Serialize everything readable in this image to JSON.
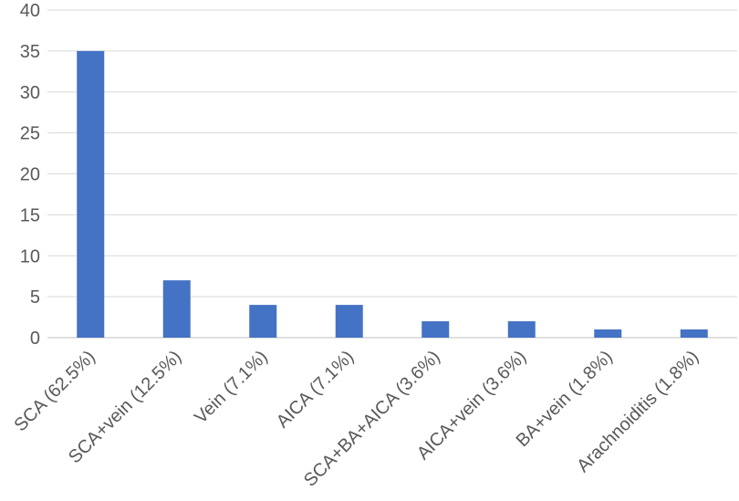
{
  "chart_data": {
    "type": "bar",
    "categories": [
      "SCA (62.5%)",
      "SCA+vein (12.5%)",
      "Vein (7.1%)",
      "AICA (7.1%)",
      "SCA+BA+AICA (3.6%)",
      "AICA+vein (3.6%)",
      "BA+vein (1.8%)",
      "Arachnoiditis (1.8%)"
    ],
    "values": [
      35,
      7,
      4,
      4,
      2,
      2,
      1,
      1
    ],
    "title": "",
    "xlabel": "",
    "ylabel": "",
    "ylim": [
      0,
      40
    ],
    "yticks": [
      0,
      5,
      10,
      15,
      20,
      25,
      30,
      35,
      40
    ],
    "grid": true,
    "legend": "none",
    "bar_color": "#4472c4"
  }
}
